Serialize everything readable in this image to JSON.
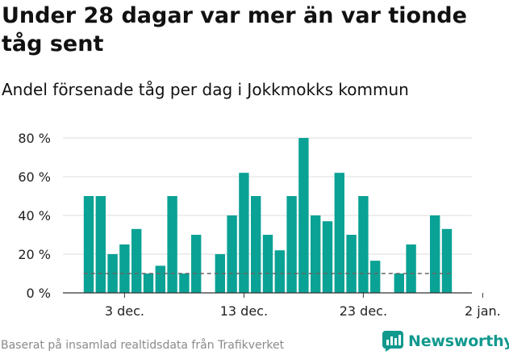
{
  "title": "Under 28 dagar var mer än var tionde tåg sent",
  "subtitle": "Andel försenade tåg per dag i Jokkmokks kommun",
  "footer": "Baserat på insamlad realtidsdata från Trafikverket",
  "brand": {
    "name": "Newsworthy",
    "icon": "newsworthy-logo-icon"
  },
  "colors": {
    "bar": "#0aa295",
    "reference_line": "#666666",
    "axis": "#333333",
    "grid": "#dddddd"
  },
  "chart_data": {
    "type": "bar",
    "title": "Under 28 dagar var mer än var tionde tåg sent",
    "subtitle": "Andel försenade tåg per dag i Jokkmokks kommun",
    "xlabel": "",
    "ylabel": "",
    "x_start": "2023-11-30",
    "x_ticks": [
      {
        "day_index": 3,
        "label": "3 dec."
      },
      {
        "day_index": 13,
        "label": "13 dec."
      },
      {
        "day_index": 23,
        "label": "23 dec."
      },
      {
        "day_index": 33,
        "label": "2 jan."
      }
    ],
    "values": [
      50,
      50,
      20,
      25,
      33,
      10,
      14,
      50,
      10,
      30,
      null,
      20,
      40,
      62,
      50,
      30,
      22,
      50,
      80,
      40,
      37,
      62,
      30,
      50,
      16.6,
      null,
      10,
      25,
      null,
      40,
      33
    ],
    "ylim": [
      0,
      80
    ],
    "yticks": [
      0,
      20,
      40,
      60,
      80
    ],
    "ytick_labels": [
      "0 %",
      "20 %",
      "40 %",
      "60 %",
      "80 %"
    ],
    "reference_line": {
      "value": 10,
      "style": "dashed"
    },
    "grid": "horizontal"
  }
}
